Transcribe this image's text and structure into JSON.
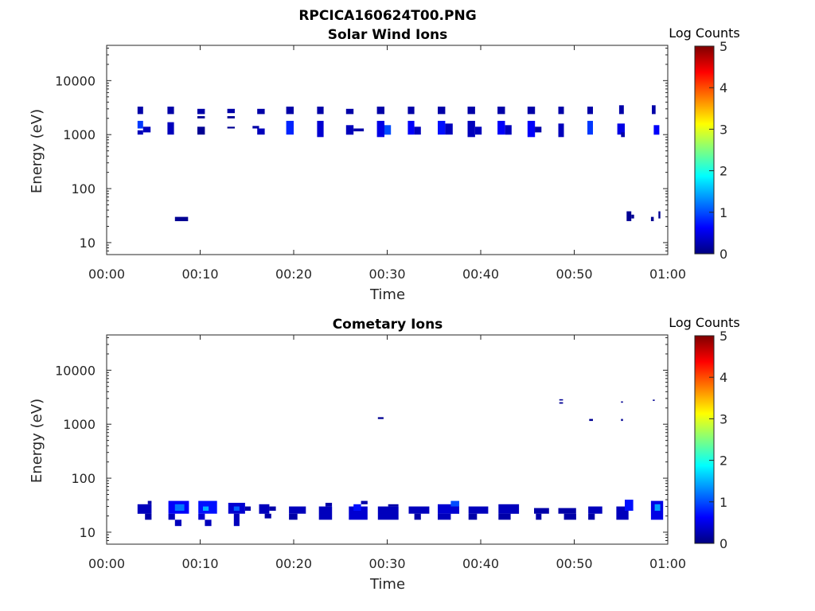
{
  "title": "RPCICA160624T00.PNG",
  "colors": {
    "colormap": [
      "#00007f",
      "#0000ff",
      "#007fff",
      "#00ffff",
      "#7fff7f",
      "#ffff00",
      "#ff7f00",
      "#ff0000",
      "#7f0000"
    ]
  },
  "chart_data": [
    {
      "type": "heatmap",
      "title": "Solar Wind Ions",
      "xlabel": "Time",
      "ylabel": "Energy (eV)",
      "x_ticks": [
        "00:00",
        "00:10",
        "00:20",
        "00:30",
        "00:40",
        "00:50",
        "01:00"
      ],
      "xlim_minutes": [
        0,
        60
      ],
      "y_ticks": [
        "10",
        "100",
        "1000",
        "10000"
      ],
      "y_scale": "log",
      "ylim": [
        6,
        45000
      ],
      "colorbar": {
        "label": "Log Counts",
        "ticks": [
          "0",
          "1",
          "2",
          "3",
          "4",
          "5"
        ],
        "range": [
          0,
          5
        ]
      },
      "cells": [
        [
          3.3,
          3.9,
          2400,
          3300,
          0.2
        ],
        [
          3.3,
          3.9,
          1300,
          1800,
          0.9
        ],
        [
          3.3,
          3.9,
          1000,
          1200,
          0.3
        ],
        [
          3.9,
          4.7,
          1100,
          1400,
          0.3
        ],
        [
          6.5,
          7.2,
          2400,
          3300,
          0.2
        ],
        [
          6.5,
          7.2,
          1000,
          1700,
          0.3
        ],
        [
          9.7,
          10.5,
          2400,
          3000,
          0.2
        ],
        [
          9.7,
          10.5,
          2000,
          2200,
          0.1
        ],
        [
          9.7,
          10.5,
          1000,
          1400,
          0.1
        ],
        [
          12.9,
          13.7,
          2500,
          3000,
          0.2
        ],
        [
          12.9,
          13.7,
          2000,
          2200,
          0.1
        ],
        [
          12.9,
          13.7,
          1300,
          1400,
          0.1
        ],
        [
          15.6,
          16.3,
          1300,
          1450,
          0.2
        ],
        [
          16.1,
          16.9,
          2400,
          3000,
          0.2
        ],
        [
          16.1,
          16.9,
          1000,
          1300,
          0.3
        ],
        [
          19.2,
          20.0,
          2400,
          3300,
          0.2
        ],
        [
          19.2,
          20.0,
          1000,
          1800,
          0.8
        ],
        [
          22.5,
          23.2,
          2400,
          3300,
          0.2
        ],
        [
          22.5,
          23.2,
          900,
          1800,
          0.4
        ],
        [
          25.6,
          26.4,
          2400,
          3000,
          0.2
        ],
        [
          25.6,
          26.4,
          1000,
          1500,
          0.3
        ],
        [
          26.4,
          27.5,
          1150,
          1300,
          0.2
        ],
        [
          28.9,
          29.7,
          2400,
          3300,
          0.2
        ],
        [
          28.9,
          29.7,
          900,
          1800,
          0.5
        ],
        [
          29.7,
          30.4,
          1000,
          1500,
          1.0
        ],
        [
          32.2,
          32.9,
          2400,
          3300,
          0.2
        ],
        [
          32.2,
          32.9,
          1000,
          1800,
          0.6
        ],
        [
          32.9,
          33.6,
          1000,
          1400,
          0.3
        ],
        [
          35.4,
          36.2,
          2400,
          3300,
          0.2
        ],
        [
          35.4,
          36.2,
          1000,
          1800,
          0.7
        ],
        [
          36.2,
          37.0,
          1000,
          1600,
          0.3
        ],
        [
          38.6,
          39.4,
          2400,
          3300,
          0.2
        ],
        [
          38.6,
          39.4,
          900,
          1800,
          0.3
        ],
        [
          39.4,
          40.1,
          1000,
          1400,
          0.3
        ],
        [
          41.8,
          42.6,
          2400,
          3300,
          0.2
        ],
        [
          41.8,
          42.6,
          1000,
          1800,
          0.6
        ],
        [
          42.6,
          43.3,
          1000,
          1500,
          0.3
        ],
        [
          45.0,
          45.8,
          2400,
          3300,
          0.2
        ],
        [
          45.0,
          45.8,
          900,
          1800,
          0.6
        ],
        [
          45.8,
          46.5,
          1100,
          1400,
          0.2
        ],
        [
          48.3,
          48.9,
          2400,
          3300,
          0.2
        ],
        [
          48.3,
          48.9,
          900,
          1600,
          0.3
        ],
        [
          51.4,
          52.0,
          2400,
          3300,
          0.2
        ],
        [
          51.4,
          52.0,
          1000,
          1800,
          0.9
        ],
        [
          54.8,
          55.3,
          2400,
          3500,
          0.2
        ],
        [
          54.6,
          55.4,
          1000,
          1600,
          0.5
        ],
        [
          55.0,
          55.4,
          900,
          1100,
          0.2
        ],
        [
          58.3,
          58.7,
          2400,
          3500,
          0.2
        ],
        [
          58.5,
          59.1,
          1000,
          1500,
          0.6
        ],
        [
          7.3,
          8.7,
          25,
          30,
          0.1
        ],
        [
          55.6,
          56.1,
          25,
          38,
          0.1
        ],
        [
          56.1,
          56.4,
          28,
          33,
          0.1
        ],
        [
          58.2,
          58.5,
          25,
          30,
          0.1
        ],
        [
          59.0,
          59.2,
          28,
          38,
          0.1
        ]
      ]
    },
    {
      "type": "heatmap",
      "title": "Cometary Ions",
      "xlabel": "Time",
      "ylabel": "Energy (eV)",
      "x_ticks": [
        "00:00",
        "00:10",
        "00:20",
        "00:30",
        "00:40",
        "00:50",
        "01:00"
      ],
      "xlim_minutes": [
        0,
        60
      ],
      "y_ticks": [
        "10",
        "100",
        "1000",
        "10000"
      ],
      "y_scale": "log",
      "ylim": [
        6,
        45000
      ],
      "colorbar": {
        "label": "Log Counts",
        "ticks": [
          "0",
          "1",
          "2",
          "3",
          "4",
          "5"
        ],
        "range": [
          0,
          5
        ]
      },
      "cells": [
        [
          3.3,
          4.8,
          22,
          33,
          0.3
        ],
        [
          4.1,
          4.8,
          17,
          22,
          0.2
        ],
        [
          4.4,
          4.8,
          33,
          38,
          0.2
        ],
        [
          6.6,
          8.8,
          22,
          38,
          0.6
        ],
        [
          7.3,
          8.3,
          25,
          33,
          1.2
        ],
        [
          6.6,
          7.3,
          17,
          22,
          0.3
        ],
        [
          7.3,
          8.0,
          13,
          17,
          0.3
        ],
        [
          9.8,
          11.8,
          22,
          38,
          0.7
        ],
        [
          10.3,
          10.9,
          25,
          30,
          1.5
        ],
        [
          9.8,
          10.5,
          17,
          22,
          0.4
        ],
        [
          10.5,
          11.2,
          13,
          17,
          0.3
        ],
        [
          13.0,
          14.8,
          22,
          35,
          0.4
        ],
        [
          13.6,
          14.2,
          25,
          30,
          1.1
        ],
        [
          13.6,
          14.2,
          13,
          22,
          0.3
        ],
        [
          14.8,
          15.4,
          25,
          30,
          0.2
        ],
        [
          16.3,
          17.4,
          22,
          33,
          0.3
        ],
        [
          17.4,
          18.1,
          25,
          30,
          0.2
        ],
        [
          16.9,
          17.6,
          18,
          22,
          0.2
        ],
        [
          19.5,
          21.3,
          22,
          30,
          0.3
        ],
        [
          19.5,
          20.4,
          17,
          22,
          0.2
        ],
        [
          22.7,
          24.1,
          17,
          30,
          0.3
        ],
        [
          23.4,
          24.1,
          30,
          35,
          0.2
        ],
        [
          25.9,
          27.9,
          17,
          30,
          0.4
        ],
        [
          26.4,
          27.2,
          25,
          33,
          0.7
        ],
        [
          27.2,
          27.9,
          33,
          38,
          0.2
        ],
        [
          29.0,
          31.2,
          17,
          30,
          0.3
        ],
        [
          30.1,
          31.2,
          30,
          33,
          0.2
        ],
        [
          32.3,
          34.5,
          22,
          30,
          0.3
        ],
        [
          32.9,
          33.6,
          17,
          22,
          0.2
        ],
        [
          35.4,
          37.7,
          22,
          33,
          0.4
        ],
        [
          35.4,
          36.8,
          17,
          22,
          0.3
        ],
        [
          36.8,
          37.7,
          30,
          38,
          1.0
        ],
        [
          38.7,
          40.8,
          22,
          30,
          0.3
        ],
        [
          38.7,
          39.6,
          17,
          22,
          0.2
        ],
        [
          41.9,
          44.1,
          22,
          33,
          0.3
        ],
        [
          41.9,
          43.2,
          17,
          22,
          0.2
        ],
        [
          45.7,
          47.3,
          22,
          28,
          0.2
        ],
        [
          45.9,
          46.5,
          17,
          22,
          0.2
        ],
        [
          48.3,
          50.2,
          22,
          28,
          0.2
        ],
        [
          48.9,
          50.2,
          17,
          22,
          0.2
        ],
        [
          51.5,
          53.0,
          22,
          30,
          0.3
        ],
        [
          51.5,
          52.2,
          17,
          22,
          0.2
        ],
        [
          54.5,
          55.8,
          17,
          30,
          0.3
        ],
        [
          55.4,
          56.3,
          25,
          40,
          0.7
        ],
        [
          58.2,
          59.5,
          17,
          38,
          0.5
        ],
        [
          58.6,
          59.2,
          25,
          33,
          1.4
        ],
        [
          29.0,
          29.6,
          1250,
          1350,
          0.1
        ],
        [
          48.4,
          48.8,
          2400,
          2550,
          0.1
        ],
        [
          48.4,
          48.8,
          2750,
          2900,
          0.1
        ],
        [
          51.6,
          52.0,
          1150,
          1250,
          0.1
        ],
        [
          55.0,
          55.2,
          1150,
          1250,
          0.1
        ],
        [
          55.0,
          55.2,
          2500,
          2650,
          0.1
        ],
        [
          58.4,
          58.6,
          2700,
          2850,
          0.1
        ]
      ]
    }
  ]
}
